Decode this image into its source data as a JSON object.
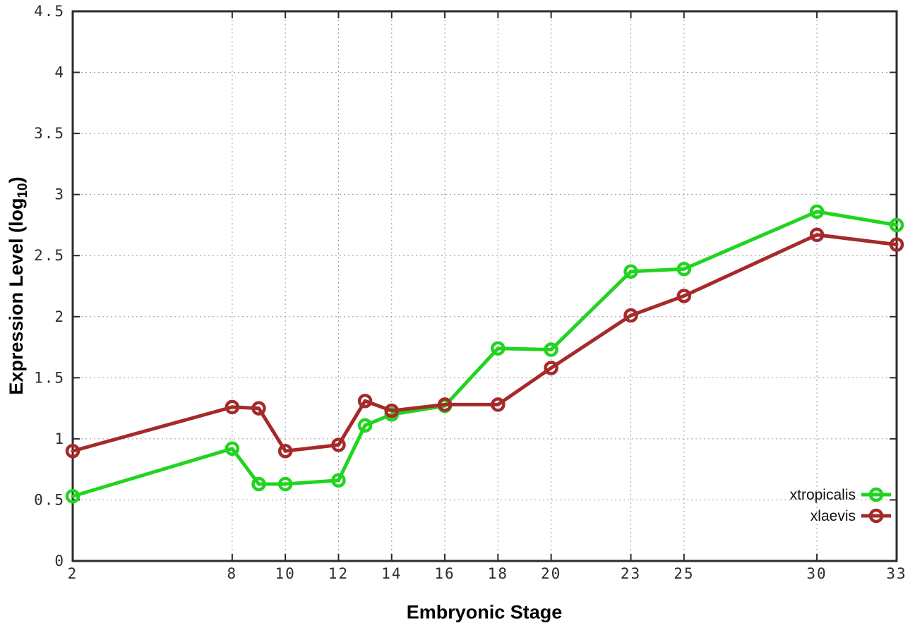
{
  "chart_data": {
    "type": "line",
    "x": [
      2,
      8,
      9,
      10,
      12,
      13,
      14,
      16,
      18,
      20,
      23,
      25,
      30,
      33
    ],
    "series": [
      {
        "name": "xtropicalis",
        "color": "#20d420",
        "values": [
          0.53,
          0.92,
          0.63,
          0.63,
          0.66,
          1.11,
          1.2,
          1.27,
          1.74,
          1.73,
          2.37,
          2.39,
          2.86,
          2.75
        ]
      },
      {
        "name": "xlaevis",
        "color": "#a52a2a",
        "values": [
          0.9,
          1.26,
          1.25,
          0.9,
          0.95,
          1.31,
          1.23,
          1.28,
          1.28,
          1.58,
          2.01,
          2.17,
          2.67,
          2.59
        ]
      }
    ],
    "title": "",
    "xlabel": "Embryonic Stage",
    "ylabel": "Expression Level (log10)",
    "xlim": [
      2,
      33
    ],
    "ylim": [
      0,
      4.5
    ],
    "grid": true,
    "legend_position": "bottom-right"
  },
  "axes": {
    "x": {
      "label": "Embryonic Stage",
      "ticks": [
        2,
        8,
        10,
        12,
        14,
        16,
        18,
        20,
        23,
        25,
        30,
        33
      ]
    },
    "y": {
      "label_prefix": "Expression Level (log",
      "label_sub": "10",
      "label_suffix": ")",
      "ticks": [
        0,
        0.5,
        1,
        1.5,
        2,
        2.5,
        3,
        3.5,
        4,
        4.5
      ]
    }
  },
  "legend": {
    "entries": [
      "xtropicalis",
      "xlaevis"
    ]
  },
  "colors": {
    "xtropicalis": "#20d420",
    "xlaevis": "#a52a2a",
    "border": "#2b2b2b",
    "grid": "#9a9a9a",
    "tick_text": "#2b2b2b"
  }
}
